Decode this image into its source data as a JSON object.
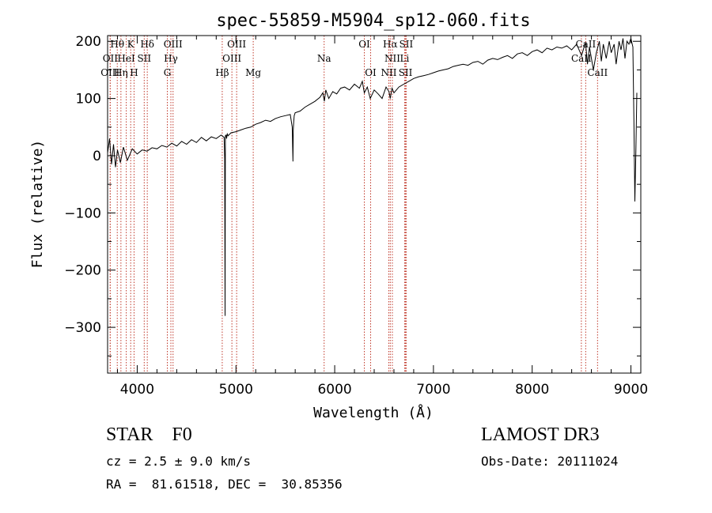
{
  "chart_data": {
    "type": "line",
    "title": "spec-55859-M5904_sp12-060.fits",
    "xlabel": "Wavelength (Å)",
    "ylabel": "Flux (relative)",
    "xlim": [
      3700,
      9100
    ],
    "ylim": [
      -380,
      210
    ],
    "xticks": [
      4000,
      5000,
      6000,
      7000,
      8000,
      9000
    ],
    "yticks": [
      -300,
      -200,
      -100,
      0,
      100,
      200
    ],
    "series": [
      {
        "name": "flux",
        "x": [
          3700,
          3720,
          3740,
          3760,
          3780,
          3800,
          3830,
          3860,
          3900,
          3950,
          4000,
          4050,
          4100,
          4150,
          4200,
          4250,
          4300,
          4350,
          4400,
          4450,
          4500,
          4550,
          4600,
          4650,
          4700,
          4750,
          4800,
          4850,
          4880,
          4886,
          4890,
          4893,
          4900,
          4905,
          4912,
          4920,
          4950,
          5000,
          5050,
          5100,
          5150,
          5200,
          5250,
          5300,
          5350,
          5400,
          5450,
          5500,
          5550,
          5570,
          5577,
          5580,
          5585,
          5590,
          5600,
          5650,
          5700,
          5750,
          5800,
          5850,
          5880,
          5895,
          5910,
          5940,
          5980,
          6020,
          6060,
          6100,
          6150,
          6200,
          6250,
          6280,
          6300,
          6330,
          6360,
          6400,
          6440,
          6480,
          6520,
          6550,
          6563,
          6580,
          6600,
          6650,
          6700,
          6750,
          6800,
          6850,
          6900,
          6950,
          7000,
          7050,
          7100,
          7150,
          7200,
          7250,
          7300,
          7350,
          7400,
          7450,
          7500,
          7550,
          7600,
          7650,
          7700,
          7750,
          7800,
          7850,
          7900,
          7950,
          8000,
          8050,
          8100,
          8150,
          8200,
          8250,
          8300,
          8350,
          8400,
          8450,
          8500,
          8540,
          8560,
          8580,
          8620,
          8650,
          8680,
          8700,
          8720,
          8750,
          8780,
          8800,
          8830,
          8850,
          8880,
          8900,
          8920,
          8940,
          8960,
          8980,
          9000,
          9020,
          9030,
          9040,
          9050,
          9060
        ],
        "y": [
          5,
          30,
          -15,
          20,
          -20,
          10,
          -12,
          15,
          -8,
          12,
          3,
          10,
          8,
          14,
          12,
          18,
          15,
          22,
          17,
          25,
          20,
          28,
          23,
          32,
          26,
          33,
          30,
          36,
          32,
          -5,
          -280,
          35,
          36,
          30,
          38,
          35,
          40,
          42,
          45,
          48,
          50,
          55,
          58,
          62,
          60,
          65,
          68,
          70,
          72,
          50,
          -10,
          45,
          60,
          70,
          75,
          78,
          85,
          90,
          95,
          102,
          110,
          95,
          115,
          100,
          112,
          108,
          118,
          120,
          115,
          125,
          118,
          130,
          110,
          120,
          100,
          115,
          108,
          100,
          120,
          112,
          100,
          118,
          110,
          120,
          125,
          130,
          135,
          138,
          140,
          142,
          145,
          148,
          150,
          152,
          156,
          158,
          160,
          158,
          163,
          165,
          160,
          167,
          170,
          168,
          172,
          175,
          170,
          178,
          180,
          175,
          182,
          185,
          180,
          188,
          185,
          190,
          188,
          192,
          185,
          195,
          175,
          198,
          160,
          190,
          150,
          180,
          200,
          165,
          195,
          170,
          200,
          180,
          195,
          160,
          200,
          185,
          205,
          170,
          200,
          195,
          205,
          190,
          60,
          -80,
          10,
          110
        ]
      }
    ],
    "line_markers_top": [
      {
        "label": "Hθ",
        "x": 3798,
        "row": 1
      },
      {
        "label": "K",
        "x": 3934,
        "row": 1
      },
      {
        "label": "Hδ",
        "x": 4102,
        "row": 1
      },
      {
        "label": "OIII",
        "x": 4363,
        "row": 1
      },
      {
        "label": "OIII",
        "x": 5007,
        "row": 1
      },
      {
        "label": "OI",
        "x": 6300,
        "row": 1
      },
      {
        "label": "Hα",
        "x": 6563,
        "row": 1
      },
      {
        "label": "SII",
        "x": 6724,
        "row": 1
      },
      {
        "label": "CaII",
        "x": 8542,
        "row": 1
      },
      {
        "label": "OII",
        "x": 3727,
        "row": 2
      },
      {
        "label": "HeI",
        "x": 3889,
        "row": 2
      },
      {
        "label": "SII",
        "x": 4071,
        "row": 2
      },
      {
        "label": "Hγ",
        "x": 4341,
        "row": 2
      },
      {
        "label": "OIII",
        "x": 4959,
        "row": 2
      },
      {
        "label": "Na",
        "x": 5893,
        "row": 2
      },
      {
        "label": "NII",
        "x": 6584,
        "row": 2
      },
      {
        "label": "Li",
        "x": 6708,
        "row": 2
      },
      {
        "label": "CaII",
        "x": 8498,
        "row": 2
      },
      {
        "label": "OIII",
        "x": 3726,
        "row": 3
      },
      {
        "label": "Hη",
        "x": 3835,
        "row": 3
      },
      {
        "label": "H",
        "x": 3968,
        "row": 3
      },
      {
        "label": "G",
        "x": 4305,
        "row": 3
      },
      {
        "label": "Hβ",
        "x": 4861,
        "row": 3
      },
      {
        "label": "Mg",
        "x": 5175,
        "row": 3
      },
      {
        "label": "OI",
        "x": 6364,
        "row": 3
      },
      {
        "label": "NII",
        "x": 6548,
        "row": 3
      },
      {
        "label": "SII",
        "x": 6717,
        "row": 3
      },
      {
        "label": "CaII",
        "x": 8662,
        "row": 3
      }
    ]
  },
  "info": {
    "object_type": "STAR    F0",
    "survey": "LAMOST DR3",
    "cz": "cz = 2.5 ± 9.0 km/s",
    "obs_date": "Obs-Date: 20111024",
    "coords": "RA =  81.61518, DEC =  30.85356"
  },
  "colors": {
    "spectrum": "#000000",
    "marker_line": "#c0392b",
    "axis": "#000000"
  }
}
